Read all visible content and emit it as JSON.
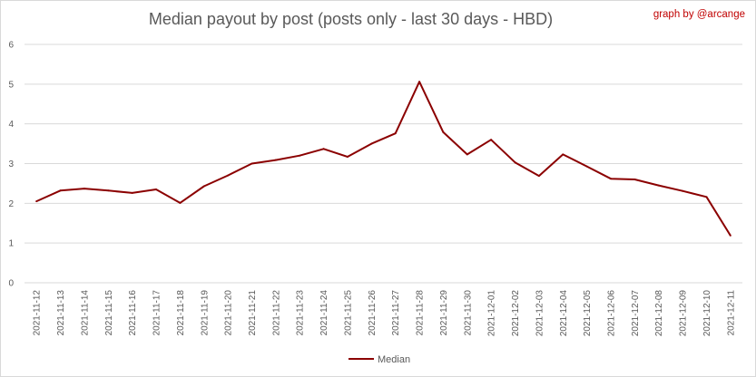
{
  "chart_data": {
    "type": "line",
    "title": "Median payout by post (posts only - last 30 days - HBD)",
    "credit": "graph by @arcange",
    "xlabel": "",
    "ylabel": "",
    "ylim": [
      0,
      6
    ],
    "yticks": [
      "0",
      "1",
      "2",
      "3",
      "4",
      "5",
      "6"
    ],
    "grid": true,
    "legend_position": "bottom",
    "categories": [
      "2021-11-12",
      "2021-11-13",
      "2021-11-14",
      "2021-11-15",
      "2021-11-16",
      "2021-11-17",
      "2021-11-18",
      "2021-11-19",
      "2021-11-20",
      "2021-11-21",
      "2021-11-22",
      "2021-11-23",
      "2021-11-24",
      "2021-11-25",
      "2021-11-26",
      "2021-11-27",
      "2021-11-28",
      "2021-11-29",
      "2021-11-30",
      "2021-12-01",
      "2021-12-02",
      "2021-12-03",
      "2021-12-04",
      "2021-12-05",
      "2021-12-06",
      "2021-12-07",
      "2021-12-08",
      "2021-12-09",
      "2021-12-10",
      "2021-12-11"
    ],
    "series": [
      {
        "name": "Median",
        "color": "#8b0000",
        "values": [
          2.05,
          2.32,
          2.37,
          2.32,
          2.26,
          2.35,
          2.01,
          2.43,
          2.7,
          3.0,
          3.09,
          3.2,
          3.37,
          3.17,
          3.5,
          3.76,
          5.06,
          3.79,
          3.23,
          3.6,
          3.03,
          2.69,
          3.23,
          2.93,
          2.62,
          2.6,
          2.45,
          2.31,
          2.16,
          1.19
        ]
      }
    ]
  }
}
